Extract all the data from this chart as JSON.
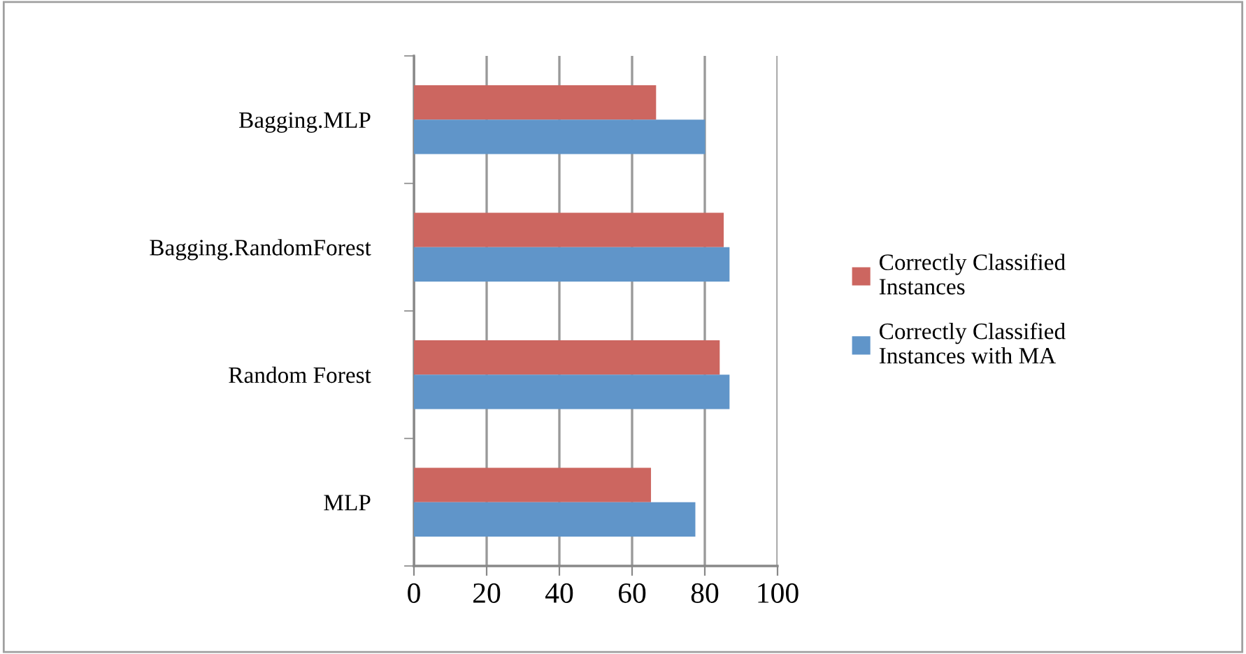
{
  "chart_data": {
    "type": "bar",
    "orientation": "horizontal",
    "categories": [
      "Bagging.MLP",
      "Bagging.RandomForest",
      "Random Forest",
      "MLP"
    ],
    "series": [
      {
        "name": "Correctly Classified Instances",
        "color": "#cc6660",
        "values": [
          66.6,
          85.2,
          84.1,
          65.2
        ]
      },
      {
        "name": "Correctly Classified Instances with MA",
        "color": "#6095c9",
        "values": [
          80.1,
          86.8,
          86.8,
          77.4
        ]
      }
    ],
    "xlim": [
      0,
      100
    ],
    "xticks": [
      0,
      20,
      40,
      60,
      80,
      100
    ],
    "grid": "x",
    "legend": "right"
  }
}
